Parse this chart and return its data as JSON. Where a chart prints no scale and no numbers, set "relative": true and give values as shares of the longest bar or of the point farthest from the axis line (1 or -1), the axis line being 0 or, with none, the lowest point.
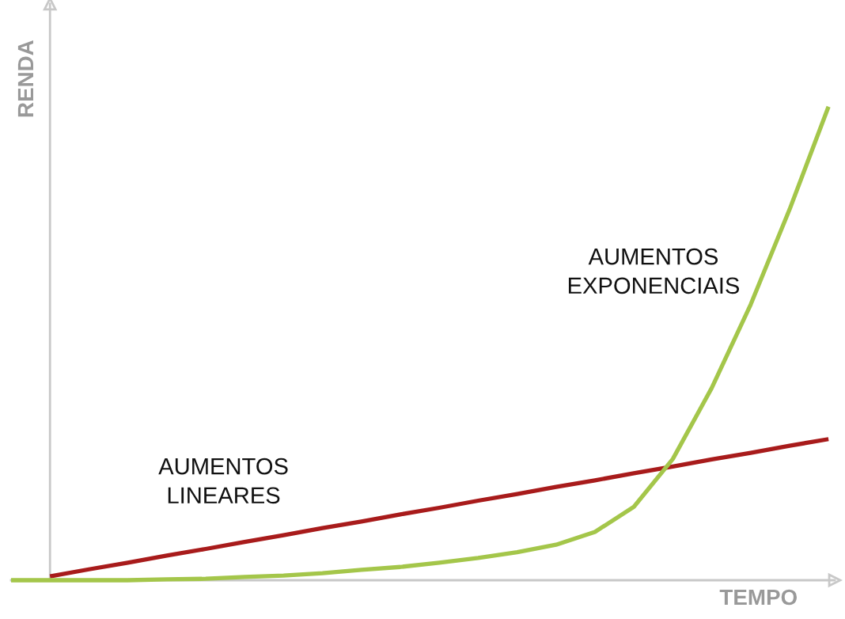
{
  "chart_data": {
    "type": "line",
    "relative": true,
    "xlabel": "TEMPO",
    "ylabel": "RENDA",
    "categories": [
      null,
      null,
      null,
      null,
      null,
      null,
      null,
      null,
      null,
      null,
      null,
      null,
      null,
      null,
      null,
      null,
      null,
      null,
      null,
      null,
      null,
      null
    ],
    "series": [
      {
        "name": "AUMENTOS LINEARES",
        "color": "#a81b1b",
        "values": [
          null,
          0.008,
          0.023,
          0.037,
          0.052,
          0.066,
          0.081,
          0.095,
          0.11,
          0.124,
          0.139,
          0.153,
          0.168,
          0.182,
          0.197,
          0.211,
          0.226,
          0.24,
          0.255,
          0.269,
          0.284,
          0.298
        ]
      },
      {
        "name": "AUMENTOS EXPONENCIAIS",
        "color": "#a4c64a",
        "values": [
          0,
          0,
          0,
          0,
          0.002,
          0.003,
          0.007,
          0.01,
          0.015,
          0.022,
          0.028,
          0.037,
          0.047,
          0.059,
          0.075,
          0.102,
          0.155,
          0.256,
          0.406,
          0.582,
          0.783,
          1
        ]
      }
    ]
  }
}
